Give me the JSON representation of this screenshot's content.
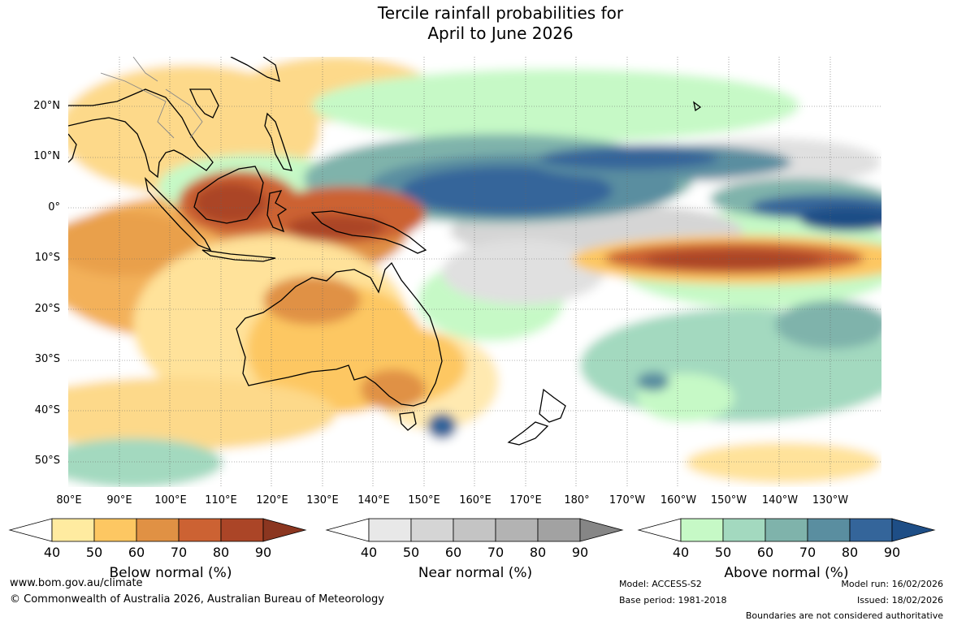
{
  "title": {
    "line1": "Tercile rainfall probabilities for",
    "line2": "April to June 2026"
  },
  "map": {
    "lat_labels": [
      "20°N",
      "10°N",
      "0°",
      "10°S",
      "20°S",
      "30°S",
      "40°S",
      "50°S"
    ],
    "lon_labels": [
      "80°E",
      "90°E",
      "100°E",
      "110°E",
      "120°E",
      "130°E",
      "140°E",
      "150°E",
      "160°E",
      "170°E",
      "180°",
      "170°W",
      "160°W",
      "150°W",
      "140°W",
      "130°W"
    ]
  },
  "legends": {
    "below": {
      "title": "Below normal (%)",
      "ticks": [
        "40",
        "50",
        "60",
        "70",
        "80",
        "90"
      ],
      "colors": [
        "#ffffff",
        "#ffeba0",
        "#fdc762",
        "#e09144",
        "#cc6233",
        "#ab4527",
        "#8b3620"
      ]
    },
    "near": {
      "title": "Near normal (%)",
      "ticks": [
        "40",
        "50",
        "60",
        "70",
        "80",
        "90"
      ],
      "colors": [
        "#ffffff",
        "#e8e8e8",
        "#d5d5d5",
        "#c4c4c4",
        "#b3b3b3",
        "#a2a2a2",
        "#868686"
      ]
    },
    "above": {
      "title": "Above normal (%)",
      "ticks": [
        "40",
        "50",
        "60",
        "70",
        "80",
        "90"
      ],
      "colors": [
        "#ffffff",
        "#c6f9c6",
        "#a3d9bf",
        "#7fb3ab",
        "#5a8ea0",
        "#34659a",
        "#1e4e86"
      ]
    }
  },
  "footer": {
    "url": "www.bom.gov.au/climate",
    "copyright": "© Commonwealth of Australia 2026, Australian Bureau of Meteorology",
    "model": "Model: ACCESS-S2",
    "base_period": "Base period: 1981-2018",
    "model_run": "Model run: 16/02/2026",
    "issued": "Issued: 18/02/2026",
    "disclaimer": "Boundaries are not considered authoritative"
  }
}
